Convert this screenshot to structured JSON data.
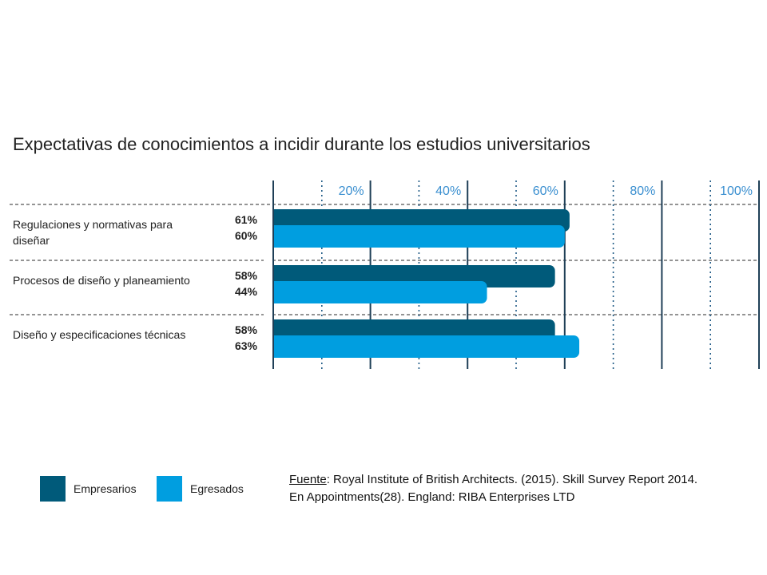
{
  "chart_data": {
    "type": "bar",
    "orientation": "horizontal",
    "title": "Expectativas de conocimientos a incidir durante los estudios universitarios",
    "categories": [
      [
        "Regulaciones y normativas para",
        "diseñar"
      ],
      [
        "Procesos de diseño y planeamiento"
      ],
      [
        "Diseño y especificaciones técnicas"
      ]
    ],
    "series": [
      {
        "name": "Empresarios",
        "color": "#005a7a",
        "values": [
          61,
          58,
          58
        ],
        "labels": [
          "61%",
          "58%",
          "58%"
        ]
      },
      {
        "name": "Egresados",
        "color": "#009ee0",
        "values": [
          60,
          44,
          63
        ],
        "labels": [
          "60%",
          "44%",
          "63%"
        ]
      }
    ],
    "xlim": [
      0,
      100
    ],
    "tick_labels": [
      "20%",
      "40%",
      "60%",
      "80%",
      "100%"
    ],
    "tick_values": [
      20,
      40,
      60,
      80,
      100
    ],
    "grid": true,
    "legend_position": "bottom-left"
  },
  "source": {
    "prefix": "Fuente",
    "rest_line1": ": Royal Institute of British Architects. (2015). Skill Survey Report 2014.",
    "line2": "En Appointments(28). England: RIBA Enterprises LTD"
  }
}
